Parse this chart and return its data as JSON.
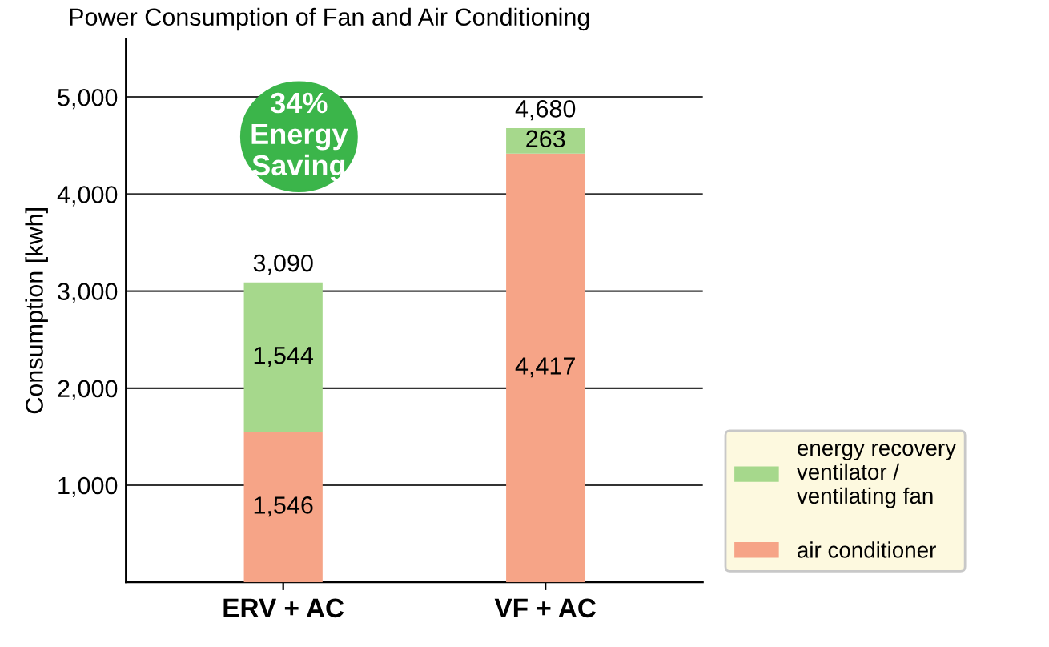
{
  "chart_data": {
    "type": "bar",
    "stacked": true,
    "title": "Power Consumption of Fan and Air Conditioning",
    "ylabel": "Consumption [kwh]",
    "categories": [
      "ERV + AC",
      "VF + AC"
    ],
    "series": [
      {
        "name": "air conditioner",
        "color": "#f6a487",
        "values": [
          1546,
          4417
        ],
        "value_labels": [
          "1,546",
          "4,417"
        ]
      },
      {
        "name": "energy recovery\nventilator /\nventilating fan",
        "color": "#a6d88c",
        "values": [
          1544,
          263
        ],
        "value_labels": [
          "1,544",
          "263"
        ]
      }
    ],
    "totals": [
      "3,090",
      "4,680"
    ],
    "annotations": [
      "34%\nEnergy\nSaving"
    ],
    "ylim": [
      0,
      5600
    ],
    "yticks": [
      {
        "value": 1000,
        "label": "1,000"
      },
      {
        "value": 2000,
        "label": "2,000"
      },
      {
        "value": 3000,
        "label": "3,000"
      },
      {
        "value": 4000,
        "label": "4,000"
      },
      {
        "value": 5000,
        "label": "5,000"
      }
    ],
    "grid": "y",
    "legend": "bottom right"
  }
}
